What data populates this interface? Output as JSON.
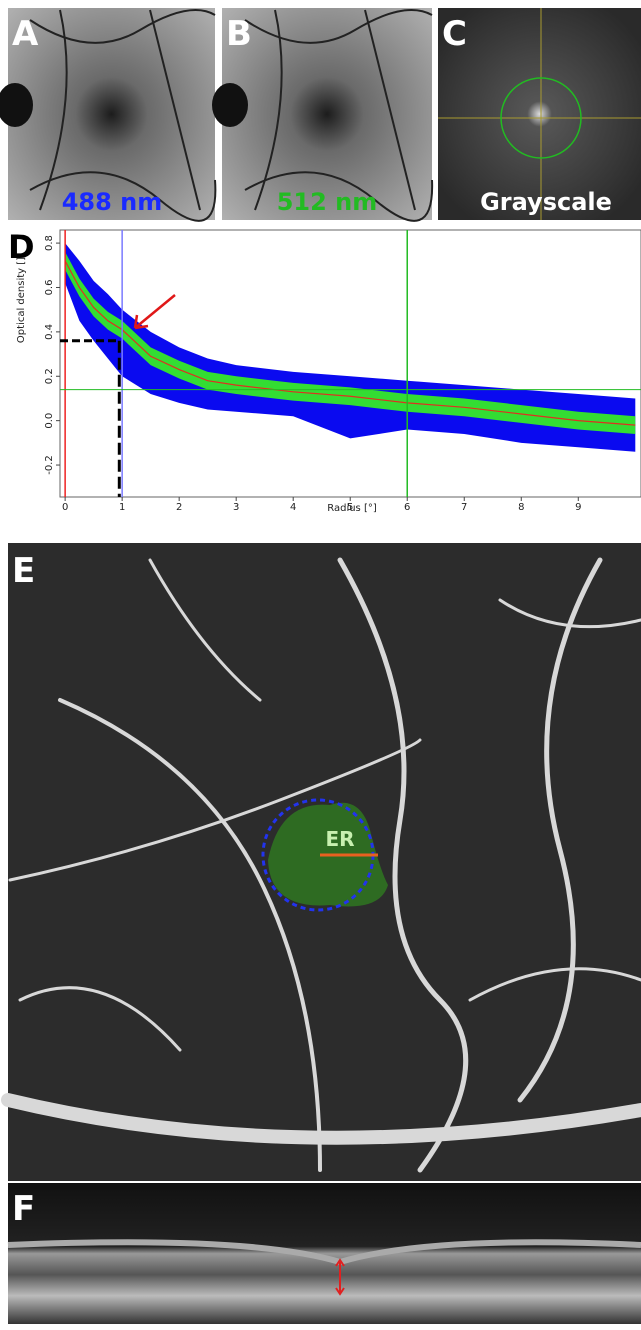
{
  "panels": [
    {
      "letter": "A",
      "caption": "488 nm"
    },
    {
      "letter": "B",
      "caption": "512 nm"
    },
    {
      "letter": "C",
      "caption": "Grayscale"
    },
    {
      "letter": "D"
    },
    {
      "letter": "E",
      "annotation": "ER"
    },
    {
      "letter": "F"
    }
  ],
  "chart_data": {
    "type": "line",
    "xlabel": "Radius [°]",
    "ylabel": "Optical density []",
    "x": [
      0,
      0.25,
      0.5,
      0.75,
      1,
      1.5,
      2,
      2.5,
      3,
      4,
      5,
      6,
      7,
      8,
      9,
      10
    ],
    "bands": [
      {
        "color": "#0a0af0",
        "upper": [
          0.8,
          0.72,
          0.63,
          0.57,
          0.5,
          0.4,
          0.33,
          0.28,
          0.25,
          0.22,
          0.2,
          0.18,
          0.16,
          0.14,
          0.12,
          0.1
        ],
        "lower": [
          0.62,
          0.45,
          0.36,
          0.28,
          0.2,
          0.12,
          0.08,
          0.05,
          0.04,
          0.02,
          -0.08,
          -0.04,
          -0.06,
          -0.1,
          -0.12,
          -0.14
        ]
      },
      {
        "color": "#33dd33",
        "upper": [
          0.76,
          0.64,
          0.55,
          0.49,
          0.45,
          0.33,
          0.27,
          0.22,
          0.2,
          0.17,
          0.15,
          0.12,
          0.1,
          0.07,
          0.04,
          0.02
        ],
        "lower": [
          0.68,
          0.56,
          0.47,
          0.41,
          0.37,
          0.25,
          0.19,
          0.14,
          0.12,
          0.09,
          0.07,
          0.04,
          0.02,
          -0.01,
          -0.04,
          -0.06
        ]
      }
    ],
    "series": [
      {
        "color": "#e03020",
        "values": [
          0.72,
          0.6,
          0.51,
          0.45,
          0.41,
          0.29,
          0.23,
          0.18,
          0.16,
          0.13,
          0.11,
          0.08,
          0.06,
          0.03,
          0.0,
          -0.02
        ]
      }
    ],
    "vlines": [
      {
        "x": 0,
        "color": "#ee2222"
      },
      {
        "x": 1,
        "color": "#7a7aff"
      },
      {
        "x": 6,
        "color": "#22bb22"
      }
    ],
    "hline": {
      "y": 0.14,
      "color": "#22bb22"
    },
    "marker": {
      "x": 0.95,
      "y": 0.36
    },
    "xlim": [
      -0.09,
      10.1
    ],
    "ylim": [
      -0.344,
      0.859
    ],
    "xticks": [
      0,
      1,
      2,
      3,
      4,
      5,
      6,
      7,
      8,
      9
    ],
    "yticks": [
      0.8,
      0.6,
      0.4,
      0.2,
      {
        "value": 0,
        "label": "0.0"
      },
      -0.2
    ]
  }
}
